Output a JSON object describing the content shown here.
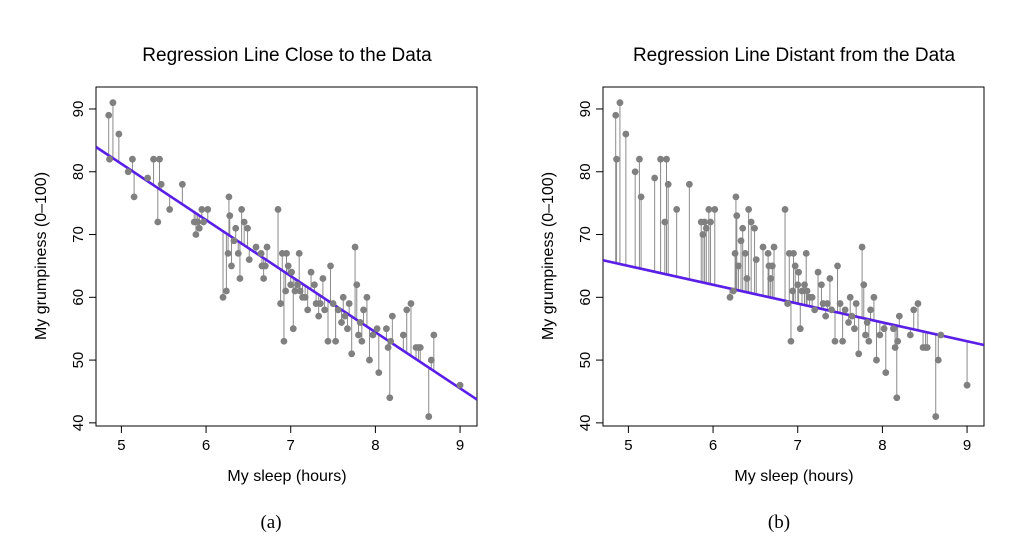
{
  "chart_data": [
    {
      "type": "scatter",
      "panel": "a",
      "title": "Regression Line Close to the Data",
      "caption": "(a)",
      "xlabel": "My sleep (hours)",
      "ylabel": "My grumpiness (0–100)",
      "xlim": [
        4.7,
        9.2
      ],
      "ylim": [
        39.5,
        93.5
      ],
      "xticks": [
        "5",
        "6",
        "7",
        "8",
        "9"
      ],
      "yticks": [
        "40",
        "50",
        "60",
        "70",
        "80",
        "90"
      ],
      "regression": {
        "intercept": 125.96,
        "slope": -8.94
      },
      "line_color": "#5a1fe6",
      "point_color": "#808080",
      "residuals_shown": true
    },
    {
      "type": "scatter",
      "panel": "b",
      "title": "Regression Line Distant from the Data",
      "caption": "(b)",
      "xlabel": "My sleep (hours)",
      "ylabel": "My grumpiness (0–100)",
      "xlim": [
        4.7,
        9.2
      ],
      "ylim": [
        39.5,
        93.5
      ],
      "xticks": [
        "5",
        "6",
        "7",
        "8",
        "9"
      ],
      "yticks": [
        "40",
        "50",
        "60",
        "70",
        "80",
        "90"
      ],
      "regression": {
        "intercept": 80,
        "slope": -3
      },
      "line_color": "#5a1fe6",
      "point_color": "#808080",
      "residuals_shown": true
    }
  ],
  "points": {
    "x": [
      4.85,
      4.86,
      4.9,
      4.97,
      5.08,
      5.13,
      5.15,
      5.31,
      5.38,
      5.43,
      5.45,
      5.47,
      5.57,
      5.72,
      5.86,
      5.88,
      5.9,
      5.92,
      5.95,
      5.97,
      6.02,
      6.2,
      6.24,
      6.26,
      6.27,
      6.28,
      6.3,
      6.33,
      6.35,
      6.38,
      6.4,
      6.42,
      6.45,
      6.49,
      6.51,
      6.59,
      6.65,
      6.66,
      6.68,
      6.7,
      6.72,
      6.85,
      6.88,
      6.9,
      6.92,
      6.94,
      6.95,
      6.97,
      7.0,
      7.01,
      7.03,
      7.05,
      7.08,
      7.1,
      7.11,
      7.14,
      7.17,
      7.2,
      7.24,
      7.28,
      7.3,
      7.33,
      7.35,
      7.38,
      7.4,
      7.44,
      7.47,
      7.5,
      7.53,
      7.56,
      7.6,
      7.62,
      7.64,
      7.67,
      7.69,
      7.72,
      7.76,
      7.78,
      7.8,
      7.82,
      7.84,
      7.86,
      7.9,
      7.93,
      7.97,
      8.02,
      8.04,
      8.13,
      8.15,
      8.17,
      8.18,
      8.2,
      8.33,
      8.37,
      8.42,
      8.48,
      8.51,
      8.53,
      8.63,
      8.66,
      8.69,
      9.0
    ],
    "y": [
      89,
      82,
      91,
      86,
      80,
      82,
      76,
      79,
      82,
      72,
      82,
      78,
      74,
      78,
      72,
      70,
      72,
      71,
      74,
      72,
      74,
      60,
      61,
      67,
      76,
      73,
      65,
      69,
      71,
      67,
      63,
      74,
      72,
      71,
      66,
      68,
      67,
      65,
      63,
      65,
      68,
      74,
      59,
      67,
      53,
      61,
      67,
      65,
      62,
      64,
      55,
      61,
      62,
      67,
      61,
      60,
      60,
      58,
      64,
      62,
      59,
      57,
      59,
      63,
      58,
      53,
      65,
      59,
      53,
      58,
      56,
      60,
      57,
      55,
      59,
      51,
      68,
      62,
      54,
      56,
      53,
      58,
      60,
      50,
      54,
      55,
      48,
      55,
      52,
      44,
      53,
      57,
      54,
      58,
      59,
      52,
      52,
      52,
      41,
      50,
      54,
      46
    ]
  }
}
